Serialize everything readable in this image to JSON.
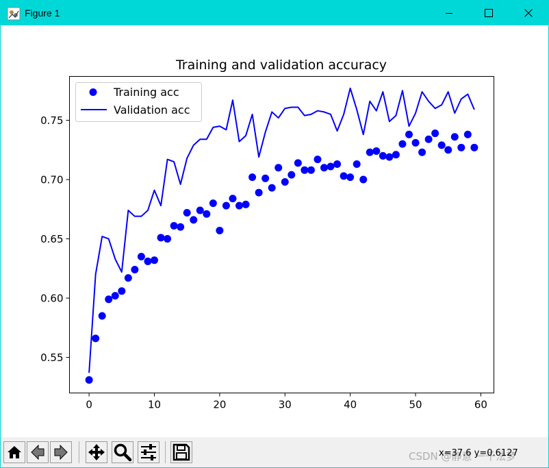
{
  "window": {
    "title": "Figure 1",
    "minimize_icon": "minimize-icon",
    "maximize_icon": "maximize-icon",
    "close_icon": "close-icon"
  },
  "toolbar": {
    "buttons": [
      {
        "name": "home-button",
        "icon": "home-icon"
      },
      {
        "name": "back-button",
        "icon": "back-arrow-icon"
      },
      {
        "name": "forward-button",
        "icon": "forward-arrow-icon"
      },
      {
        "name": "pan-button",
        "icon": "pan-icon"
      },
      {
        "name": "zoom-button",
        "icon": "zoom-icon"
      },
      {
        "name": "configure-subplots-button",
        "icon": "sliders-icon"
      },
      {
        "name": "save-button",
        "icon": "save-icon"
      }
    ],
    "coordinates": "x=37.6 y=0.6127",
    "watermark": "CSDN @静意   一千法梦"
  },
  "chart_data": {
    "type": "line",
    "title": "Training and validation accuracy",
    "xlabel": "",
    "ylabel": "",
    "xlim": [
      -3,
      62
    ],
    "ylim": [
      0.52,
      0.787
    ],
    "xticks": [
      0,
      10,
      20,
      30,
      40,
      50,
      60
    ],
    "yticks": [
      0.55,
      0.6,
      0.65,
      0.7,
      0.75
    ],
    "ytick_labels": [
      "0.55",
      "0.60",
      "0.65",
      "0.70",
      "0.75"
    ],
    "grid": false,
    "legend": "upper-left",
    "colors": {
      "series": "#0000ff",
      "axes": "#000000"
    },
    "series": [
      {
        "name": "Training acc",
        "style": "points",
        "x": [
          0,
          1,
          2,
          3,
          4,
          5,
          6,
          7,
          8,
          9,
          10,
          11,
          12,
          13,
          14,
          15,
          16,
          17,
          18,
          19,
          20,
          21,
          22,
          23,
          24,
          25,
          26,
          27,
          28,
          29,
          30,
          31,
          32,
          33,
          34,
          35,
          36,
          37,
          38,
          39,
          40,
          41,
          42,
          43,
          44,
          45,
          46,
          47,
          48,
          49,
          50,
          51,
          52,
          53,
          54,
          55,
          56,
          57,
          58,
          59
        ],
        "values": [
          0.531,
          0.566,
          0.585,
          0.599,
          0.602,
          0.606,
          0.617,
          0.624,
          0.635,
          0.631,
          0.632,
          0.651,
          0.65,
          0.661,
          0.66,
          0.672,
          0.666,
          0.674,
          0.671,
          0.68,
          0.657,
          0.678,
          0.684,
          0.678,
          0.679,
          0.702,
          0.689,
          0.701,
          0.693,
          0.71,
          0.698,
          0.704,
          0.714,
          0.708,
          0.708,
          0.717,
          0.71,
          0.711,
          0.713,
          0.703,
          0.702,
          0.713,
          0.7,
          0.723,
          0.724,
          0.72,
          0.719,
          0.721,
          0.73,
          0.738,
          0.731,
          0.723,
          0.734,
          0.739,
          0.729,
          0.725,
          0.736,
          0.727,
          0.738,
          0.727
        ]
      },
      {
        "name": "Validation acc",
        "style": "line",
        "x": [
          0,
          1,
          2,
          3,
          4,
          5,
          6,
          7,
          8,
          9,
          10,
          11,
          12,
          13,
          14,
          15,
          16,
          17,
          18,
          19,
          20,
          21,
          22,
          23,
          24,
          25,
          26,
          27,
          28,
          29,
          30,
          31,
          32,
          33,
          34,
          35,
          36,
          37,
          38,
          39,
          40,
          41,
          42,
          43,
          44,
          45,
          46,
          47,
          48,
          49,
          50,
          51,
          52,
          53,
          54,
          55,
          56,
          57,
          58,
          59
        ],
        "values": [
          0.537,
          0.62,
          0.652,
          0.65,
          0.633,
          0.622,
          0.674,
          0.669,
          0.669,
          0.674,
          0.691,
          0.678,
          0.717,
          0.715,
          0.696,
          0.718,
          0.729,
          0.734,
          0.734,
          0.744,
          0.745,
          0.742,
          0.767,
          0.732,
          0.737,
          0.755,
          0.719,
          0.74,
          0.757,
          0.752,
          0.76,
          0.761,
          0.761,
          0.754,
          0.755,
          0.758,
          0.757,
          0.755,
          0.741,
          0.755,
          0.777,
          0.759,
          0.738,
          0.766,
          0.758,
          0.774,
          0.749,
          0.754,
          0.775,
          0.745,
          0.756,
          0.774,
          0.766,
          0.76,
          0.763,
          0.774,
          0.756,
          0.768,
          0.772,
          0.759
        ]
      }
    ]
  }
}
